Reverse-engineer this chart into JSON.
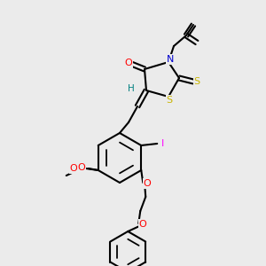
{
  "bg_color": "#ebebeb",
  "bond_color": "#000000",
  "bond_lw": 1.5,
  "fig_size": [
    3.0,
    3.0
  ],
  "dpi": 100,
  "colors": {
    "O": "#ff0000",
    "N": "#0000cd",
    "S": "#c8b400",
    "I": "#ff00ff",
    "H": "#008080",
    "C": "#000000"
  },
  "font_size": 7.5,
  "font_size_small": 6.5
}
